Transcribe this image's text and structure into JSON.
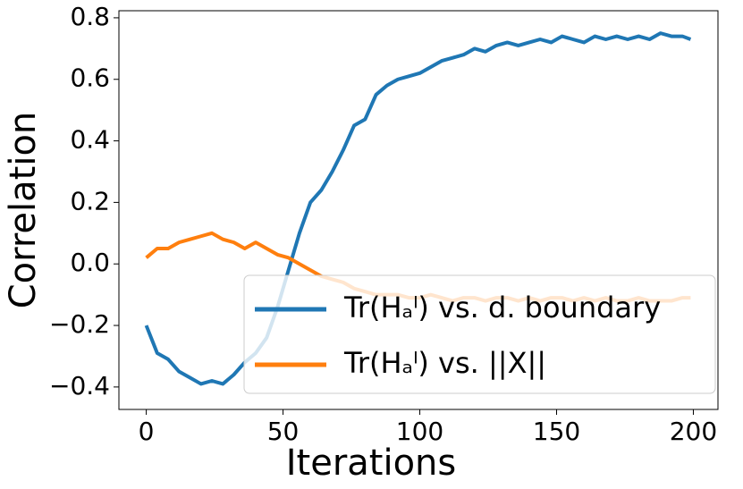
{
  "chart_data": {
    "type": "line",
    "xlabel": "Iterations",
    "ylabel": "Correlation",
    "x": [
      0,
      4,
      8,
      12,
      16,
      20,
      24,
      28,
      32,
      36,
      40,
      44,
      48,
      52,
      56,
      60,
      64,
      68,
      72,
      76,
      80,
      84,
      88,
      92,
      96,
      100,
      104,
      108,
      112,
      116,
      120,
      124,
      128,
      132,
      136,
      140,
      144,
      148,
      152,
      156,
      160,
      164,
      168,
      172,
      176,
      180,
      184,
      188,
      192,
      196,
      199
    ],
    "series": [
      {
        "name": "Tr(Hₐˡ) vs. d. boundary",
        "color": "#1f77b4",
        "values": [
          -0.2,
          -0.29,
          -0.31,
          -0.35,
          -0.37,
          -0.39,
          -0.38,
          -0.39,
          -0.36,
          -0.32,
          -0.29,
          -0.24,
          -0.14,
          -0.02,
          0.1,
          0.2,
          0.24,
          0.3,
          0.37,
          0.45,
          0.47,
          0.55,
          0.58,
          0.6,
          0.61,
          0.62,
          0.64,
          0.66,
          0.67,
          0.68,
          0.7,
          0.69,
          0.71,
          0.72,
          0.71,
          0.72,
          0.73,
          0.72,
          0.74,
          0.73,
          0.72,
          0.74,
          0.73,
          0.74,
          0.73,
          0.74,
          0.73,
          0.75,
          0.74,
          0.74,
          0.73
        ]
      },
      {
        "name": "Tr(Hₐˡ) vs.  ||X||",
        "color": "#ff7f0e",
        "values": [
          0.02,
          0.05,
          0.05,
          0.07,
          0.08,
          0.09,
          0.1,
          0.08,
          0.07,
          0.05,
          0.07,
          0.05,
          0.03,
          0.02,
          0.0,
          -0.02,
          -0.04,
          -0.05,
          -0.06,
          -0.08,
          -0.09,
          -0.1,
          -0.1,
          -0.1,
          -0.11,
          -0.11,
          -0.1,
          -0.11,
          -0.12,
          -0.11,
          -0.11,
          -0.12,
          -0.11,
          -0.11,
          -0.12,
          -0.11,
          -0.12,
          -0.11,
          -0.11,
          -0.12,
          -0.11,
          -0.12,
          -0.11,
          -0.12,
          -0.12,
          -0.11,
          -0.12,
          -0.12,
          -0.12,
          -0.11,
          -0.11
        ]
      }
    ],
    "xlim": [
      -10,
      209
    ],
    "xticks": [
      0,
      50,
      100,
      150,
      200
    ],
    "ylim": [
      -0.473,
      0.823
    ],
    "yticks": [
      {
        "value": -0.4,
        "label": "−0.4"
      },
      {
        "value": -0.2,
        "label": "−0.2"
      },
      {
        "value": 0,
        "label": "0.0"
      },
      {
        "value": 0.2,
        "label": "0.2"
      },
      {
        "value": 0.4,
        "label": "0.4"
      },
      {
        "value": 0.6,
        "label": "0.6"
      },
      {
        "value": 0.8,
        "label": "0.8"
      }
    ],
    "legend": "lower right"
  }
}
